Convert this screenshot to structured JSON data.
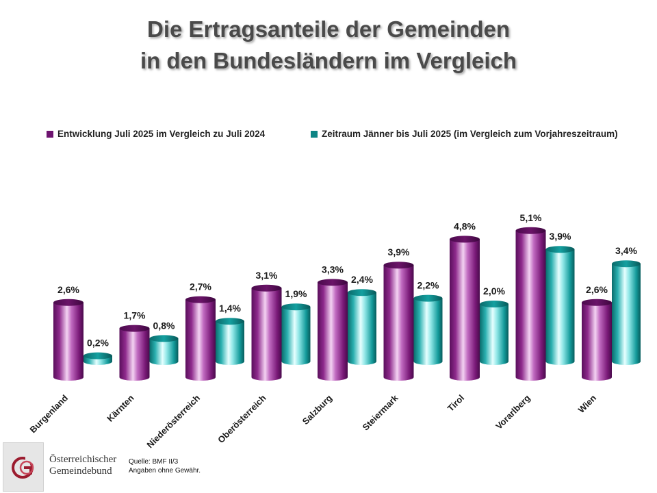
{
  "title": {
    "line1": "Die Ertragsanteile der Gemeinden",
    "line2": "in den Bundesländern im Vergleich"
  },
  "chart_data": {
    "type": "bar",
    "categories": [
      "Burgenland",
      "Kärnten",
      "Niederösterreich",
      "Oberösterreich",
      "Salzburg",
      "Steiermark",
      "Tirol",
      "Vorarlberg",
      "Wien"
    ],
    "series": [
      {
        "name": "Entwicklung Juli 2025 im Vergleich zu Juli 2024",
        "values": [
          2.6,
          1.7,
          2.7,
          3.1,
          3.3,
          3.9,
          4.8,
          5.1,
          2.6
        ],
        "labels": [
          "2,6%",
          "1,7%",
          "2,7%",
          "3,1%",
          "3,3%",
          "3,9%",
          "4,8%",
          "5,1%",
          "2,6%"
        ],
        "color": "#7a1a78"
      },
      {
        "name": "Zeitraum Jänner bis Juli 2025 (im Vergleich zum Vorjahreszeitraum)",
        "values": [
          0.2,
          0.8,
          1.4,
          1.9,
          2.4,
          2.2,
          2.0,
          3.9,
          3.4
        ],
        "labels": [
          "0,2%",
          "0,8%",
          "1,4%",
          "1,9%",
          "2,4%",
          "2,2%",
          "2,0%",
          "3,9%",
          "3,4%"
        ],
        "color": "#0f8a8a"
      }
    ],
    "ylim": [
      0,
      5.5
    ],
    "legend_position": "top",
    "grid": false
  },
  "footer": {
    "logo_line1": "Österreichischer",
    "logo_line2": "Gemeindebund",
    "source_line1": "Quelle: BMF II/3",
    "source_line2": "Angaben ohne Gewähr."
  }
}
